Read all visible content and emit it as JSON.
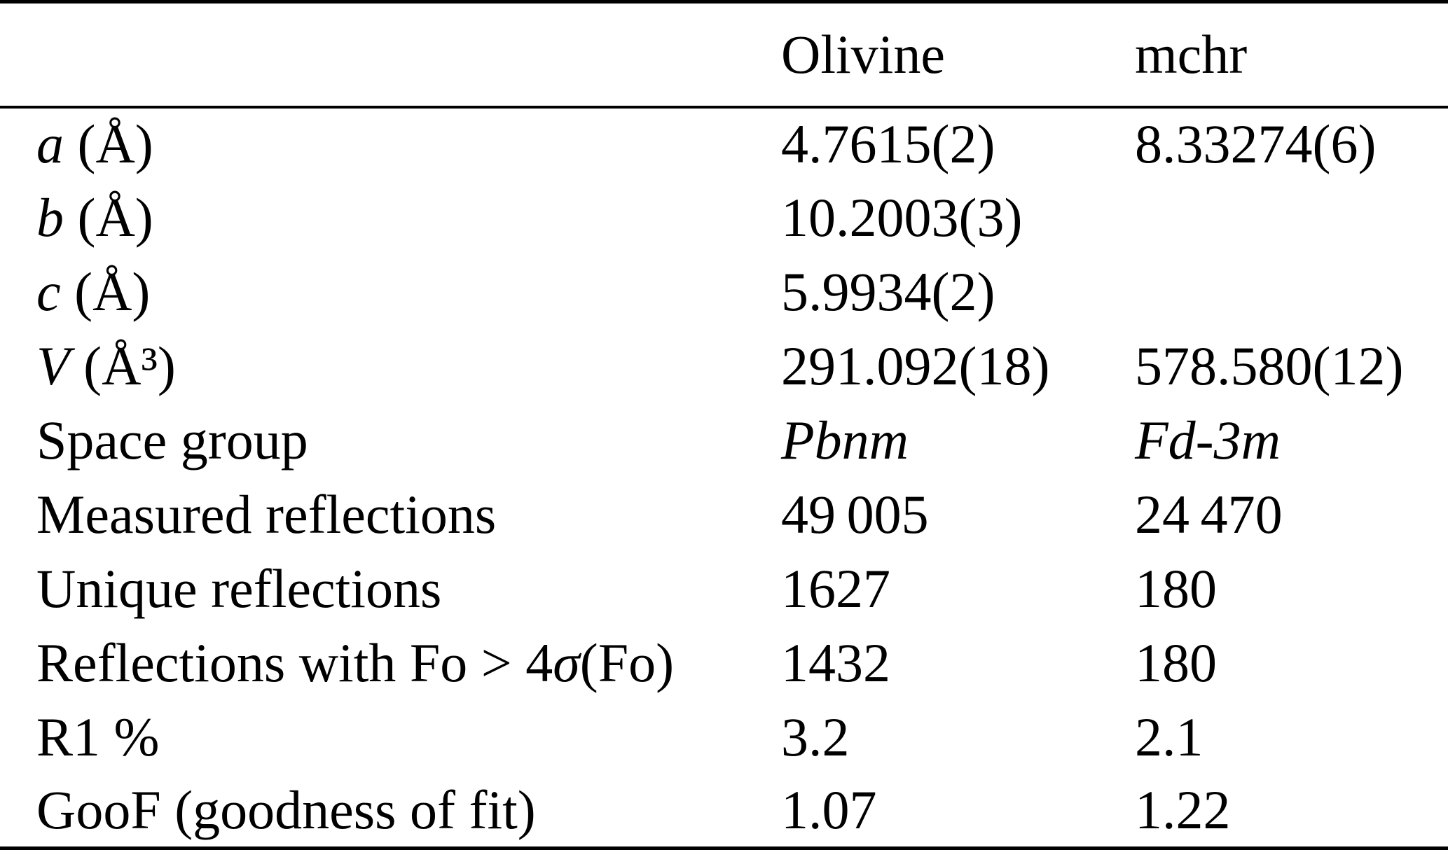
{
  "table": {
    "columns": [
      "",
      "Olivine",
      "mchr"
    ],
    "rows": [
      {
        "label_pre": "",
        "label_var": "a",
        "label_rest": " (Å)",
        "olivine": "4.7615(2)",
        "mchr": "8.33274(6)"
      },
      {
        "label_pre": "",
        "label_var": "b",
        "label_rest": " (Å)",
        "olivine": "10.2003(3)",
        "mchr": ""
      },
      {
        "label_pre": "",
        "label_var": "c",
        "label_rest": " (Å)",
        "olivine": "5.9934(2)",
        "mchr": ""
      },
      {
        "label_pre": "",
        "label_var": "V",
        "label_rest": " (Å³)",
        "olivine": "291.092(18)",
        "mchr": "578.580(12)"
      },
      {
        "label_pre": "Space group",
        "label_var": "",
        "label_rest": "",
        "olivine": "Pbnm",
        "mchr": "Fd-3m"
      },
      {
        "label_pre": "Measured reflections",
        "label_var": "",
        "label_rest": "",
        "olivine": "49 005",
        "mchr": "24 470"
      },
      {
        "label_pre": "Unique reflections",
        "label_var": "",
        "label_rest": "",
        "olivine": "1627",
        "mchr": "180"
      },
      {
        "label_pre": "Reflections with Fo > 4",
        "label_var": "σ",
        "label_rest": "(Fo)",
        "olivine": "1432",
        "mchr": "180"
      },
      {
        "label_pre": "R1 %",
        "label_var": "",
        "label_rest": "",
        "olivine": "3.2",
        "mchr": "2.1"
      },
      {
        "label_pre": "GooF (goodness of fit)",
        "label_var": "",
        "label_rest": "",
        "olivine": "1.07",
        "mchr": "1.22"
      }
    ]
  },
  "colors": {
    "text": "#000000",
    "background": "#ffffff",
    "rule": "#000000"
  }
}
